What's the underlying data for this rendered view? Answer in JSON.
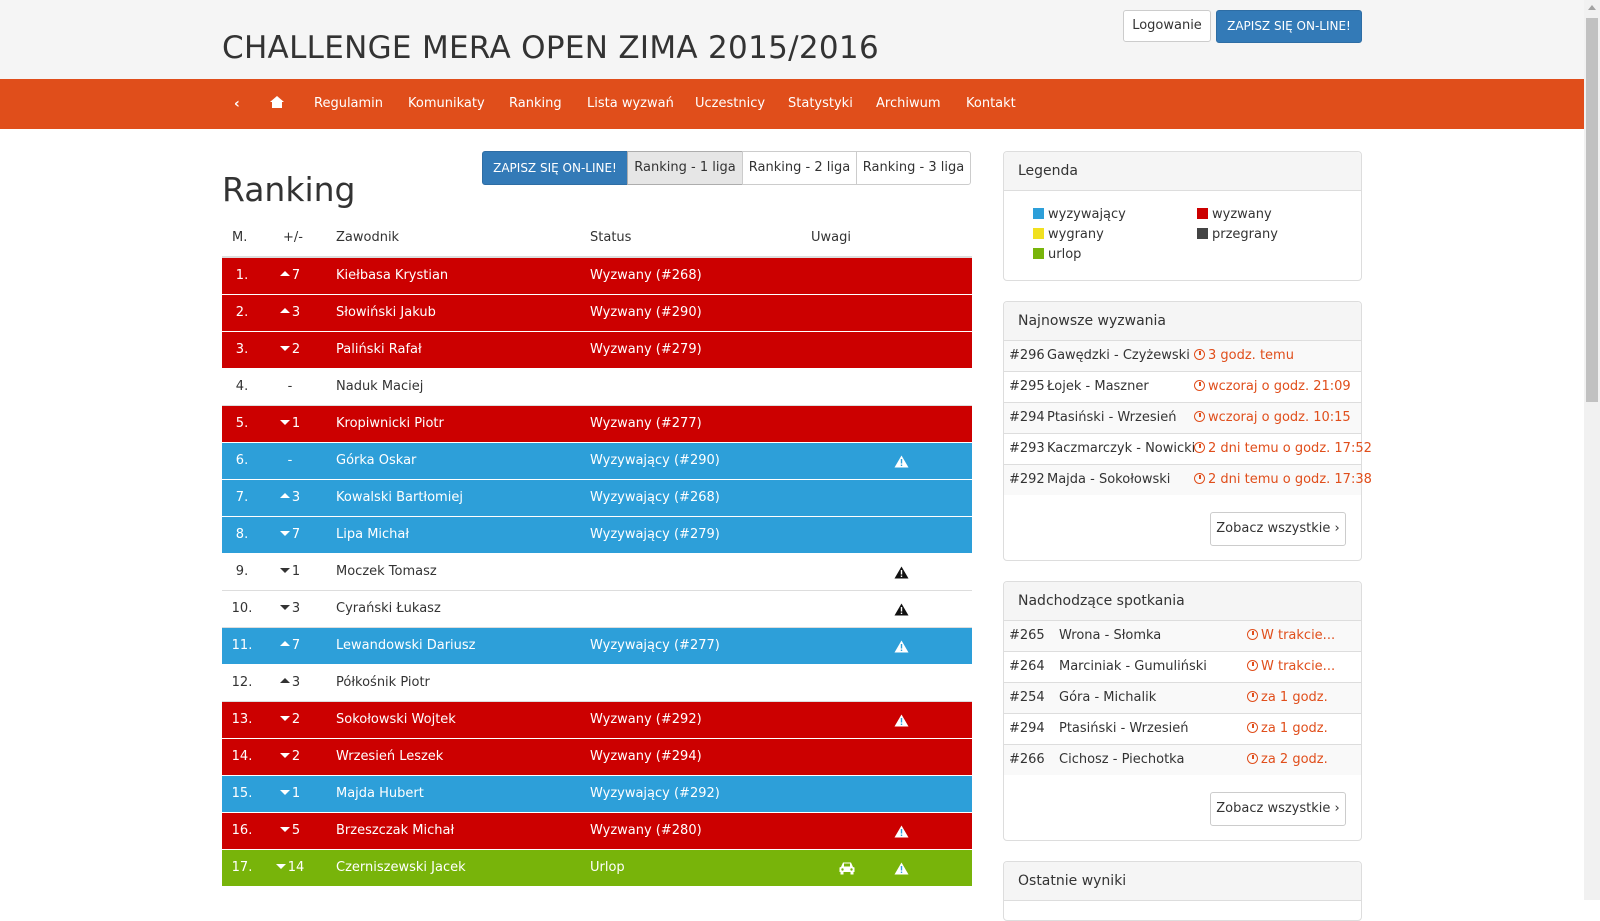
{
  "header": {
    "title": "CHALLENGE MERA OPEN ZIMA 2015/2016",
    "login_label": "Logowanie",
    "signup_label": "ZAPISZ SIĘ ON-LINE!"
  },
  "nav": {
    "back_icon": "chevron-left-icon",
    "home_icon": "home-icon",
    "items": [
      "Regulamin",
      "Komunikaty",
      "Ranking",
      "Lista wyzwań",
      "Uczestnicy",
      "Statystyki",
      "Archiwum",
      "Kontakt"
    ]
  },
  "colors": {
    "nav_bg": "#e04e1b",
    "challenged_red": "#cc0000",
    "challenger_blue": "#2d9fd9",
    "vacation_green": "#78b40a",
    "winner_yellow": "#f0e020",
    "loser_dark": "#444444",
    "primary_button": "#337ab7"
  },
  "main": {
    "heading": "Ranking",
    "buttons": {
      "signup": "ZAPISZ SIĘ ON-LINE!",
      "league1": "Ranking - 1 liga",
      "league2": "Ranking - 2 liga",
      "league3": "Ranking - 3 liga"
    },
    "table": {
      "headers": [
        "M.",
        "+/-",
        "Zawodnik",
        "Status",
        "Uwagi"
      ],
      "rows": [
        {
          "pos": "1.",
          "dir": "up",
          "chg": "7",
          "name": "Kiełbasa Krystian",
          "status": "Wyzwany (#268)",
          "type": "red",
          "warn": false,
          "car": false
        },
        {
          "pos": "2.",
          "dir": "up",
          "chg": "3",
          "name": "Słowiński Jakub",
          "status": "Wyzwany (#290)",
          "type": "red",
          "warn": false,
          "car": false
        },
        {
          "pos": "3.",
          "dir": "down",
          "chg": "2",
          "name": "Paliński Rafał",
          "status": "Wyzwany (#279)",
          "type": "red",
          "warn": false,
          "car": false
        },
        {
          "pos": "4.",
          "dir": "none",
          "chg": "-",
          "name": "Naduk Maciej",
          "status": "",
          "type": "plain",
          "warn": false,
          "car": false
        },
        {
          "pos": "5.",
          "dir": "down",
          "chg": "1",
          "name": "Kropiwnicki Piotr",
          "status": "Wyzwany (#277)",
          "type": "red",
          "warn": false,
          "car": false
        },
        {
          "pos": "6.",
          "dir": "none",
          "chg": "-",
          "name": "Górka Oskar",
          "status": "Wyzywający (#290)",
          "type": "blue",
          "warn": true,
          "car": false
        },
        {
          "pos": "7.",
          "dir": "up",
          "chg": "3",
          "name": "Kowalski Bartłomiej",
          "status": "Wyzywający (#268)",
          "type": "blue",
          "warn": false,
          "car": false
        },
        {
          "pos": "8.",
          "dir": "down",
          "chg": "7",
          "name": "Lipa Michał",
          "status": "Wyzywający (#279)",
          "type": "blue",
          "warn": false,
          "car": false
        },
        {
          "pos": "9.",
          "dir": "down",
          "chg": "1",
          "name": "Moczek Tomasz",
          "status": "",
          "type": "plain",
          "warn": true,
          "car": false
        },
        {
          "pos": "10.",
          "dir": "down",
          "chg": "3",
          "name": "Cyrański Łukasz",
          "status": "",
          "type": "plain",
          "warn": true,
          "car": false
        },
        {
          "pos": "11.",
          "dir": "up",
          "chg": "7",
          "name": "Lewandowski Dariusz",
          "status": "Wyzywający (#277)",
          "type": "blue",
          "warn": true,
          "car": false
        },
        {
          "pos": "12.",
          "dir": "up",
          "chg": "3",
          "name": "Półkośnik Piotr",
          "status": "",
          "type": "plain",
          "warn": false,
          "car": false
        },
        {
          "pos": "13.",
          "dir": "down",
          "chg": "2",
          "name": "Sokołowski Wojtek",
          "status": "Wyzwany (#292)",
          "type": "red",
          "warn": true,
          "car": false
        },
        {
          "pos": "14.",
          "dir": "down",
          "chg": "2",
          "name": "Wrzesień Leszek",
          "status": "Wyzwany (#294)",
          "type": "red",
          "warn": false,
          "car": false
        },
        {
          "pos": "15.",
          "dir": "down",
          "chg": "1",
          "name": "Majda Hubert",
          "status": "Wyzywający (#292)",
          "type": "blue",
          "warn": false,
          "car": false
        },
        {
          "pos": "16.",
          "dir": "down",
          "chg": "5",
          "name": "Brzeszczak Michał",
          "status": "Wyzwany (#280)",
          "type": "red",
          "warn": true,
          "car": false
        },
        {
          "pos": "17.",
          "dir": "down",
          "chg": "14",
          "name": "Czerniszewski Jacek",
          "status": "Urlop",
          "type": "green",
          "warn": true,
          "car": true
        }
      ]
    }
  },
  "sidebar": {
    "legend": {
      "title": "Legenda",
      "items": [
        {
          "label": "wyzywający",
          "color": "#2d9fd9"
        },
        {
          "label": "wyzwany",
          "color": "#cc0000"
        },
        {
          "label": "wygrany",
          "color": "#f0e020"
        },
        {
          "label": "przegrany",
          "color": "#444444"
        },
        {
          "label": "urlop",
          "color": "#78b40a"
        }
      ]
    },
    "latest": {
      "title": "Najnowsze wyzwania",
      "rows": [
        {
          "id": "#296",
          "match": "Gawędzki - Czyżewski",
          "time": "3 godz. temu"
        },
        {
          "id": "#295",
          "match": "Łojek - Maszner",
          "time": "wczoraj o godz. 21:09"
        },
        {
          "id": "#294",
          "match": "Ptasiński - Wrzesień",
          "time": "wczoraj o godz. 10:15"
        },
        {
          "id": "#293",
          "match": "Kaczmarczyk - Nowicki",
          "time": "2 dni temu o godz. 17:52"
        },
        {
          "id": "#292",
          "match": "Majda - Sokołowski",
          "time": "2 dni temu o godz. 17:38"
        }
      ],
      "see_all": "Zobacz wszystkie"
    },
    "upcoming": {
      "title": "Nadchodzące spotkania",
      "rows": [
        {
          "id": "#265",
          "match": "Wrona - Słomka",
          "time": "W trakcie..."
        },
        {
          "id": "#264",
          "match": "Marciniak - Gumuliński",
          "time": "W trakcie..."
        },
        {
          "id": "#254",
          "match": "Góra - Michalik",
          "time": "za 1 godz."
        },
        {
          "id": "#294",
          "match": "Ptasiński - Wrzesień",
          "time": "za 1 godz."
        },
        {
          "id": "#266",
          "match": "Cichosz - Piechotka",
          "time": "za 2 godz."
        }
      ],
      "see_all": "Zobacz wszystkie"
    },
    "results": {
      "title": "Ostatnie wyniki"
    }
  }
}
